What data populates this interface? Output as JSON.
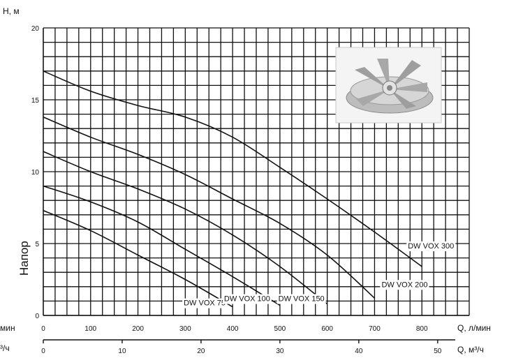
{
  "chart_data": {
    "type": "line",
    "ylabel_unit": "H, м",
    "ylabel": "Напор",
    "xlabel": "Q, л/мин",
    "xlabel_left": "мин",
    "x2label": "Q, м³/ч",
    "x2label_left": "³/ч",
    "xlim": [
      0,
      900
    ],
    "ylim": [
      0,
      20
    ],
    "x_ticks": [
      0,
      100,
      200,
      300,
      400,
      500,
      600,
      700,
      800
    ],
    "y_ticks": [
      0,
      5,
      10,
      15,
      20
    ],
    "x2_ticks": [
      0,
      10,
      20,
      30,
      40,
      50
    ],
    "grid": true,
    "series": [
      {
        "name": "DW VOX 75",
        "x": [
          0,
          100,
          200,
          300,
          400
        ],
        "y": [
          7.3,
          5.9,
          4.2,
          2.5,
          0.6
        ]
      },
      {
        "name": "DW VOX 100",
        "x": [
          0,
          100,
          200,
          300,
          400,
          500
        ],
        "y": [
          9.0,
          7.9,
          6.5,
          4.6,
          2.7,
          0.7
        ]
      },
      {
        "name": "DW VOX 150",
        "x": [
          0,
          100,
          200,
          300,
          400,
          500,
          600
        ],
        "y": [
          11.4,
          10.0,
          8.8,
          7.4,
          5.6,
          3.4,
          0.8
        ]
      },
      {
        "name": "DW VOX 200",
        "x": [
          0,
          100,
          200,
          300,
          400,
          500,
          600,
          700
        ],
        "y": [
          13.8,
          12.4,
          11.2,
          9.8,
          8.1,
          6.4,
          4.2,
          1.2
        ]
      },
      {
        "name": "DW VOX 300",
        "x": [
          0,
          100,
          200,
          300,
          400,
          500,
          600,
          700,
          800
        ],
        "y": [
          17.0,
          15.6,
          14.6,
          13.8,
          12.4,
          10.3,
          8.1,
          5.8,
          3.4
        ]
      }
    ]
  }
}
